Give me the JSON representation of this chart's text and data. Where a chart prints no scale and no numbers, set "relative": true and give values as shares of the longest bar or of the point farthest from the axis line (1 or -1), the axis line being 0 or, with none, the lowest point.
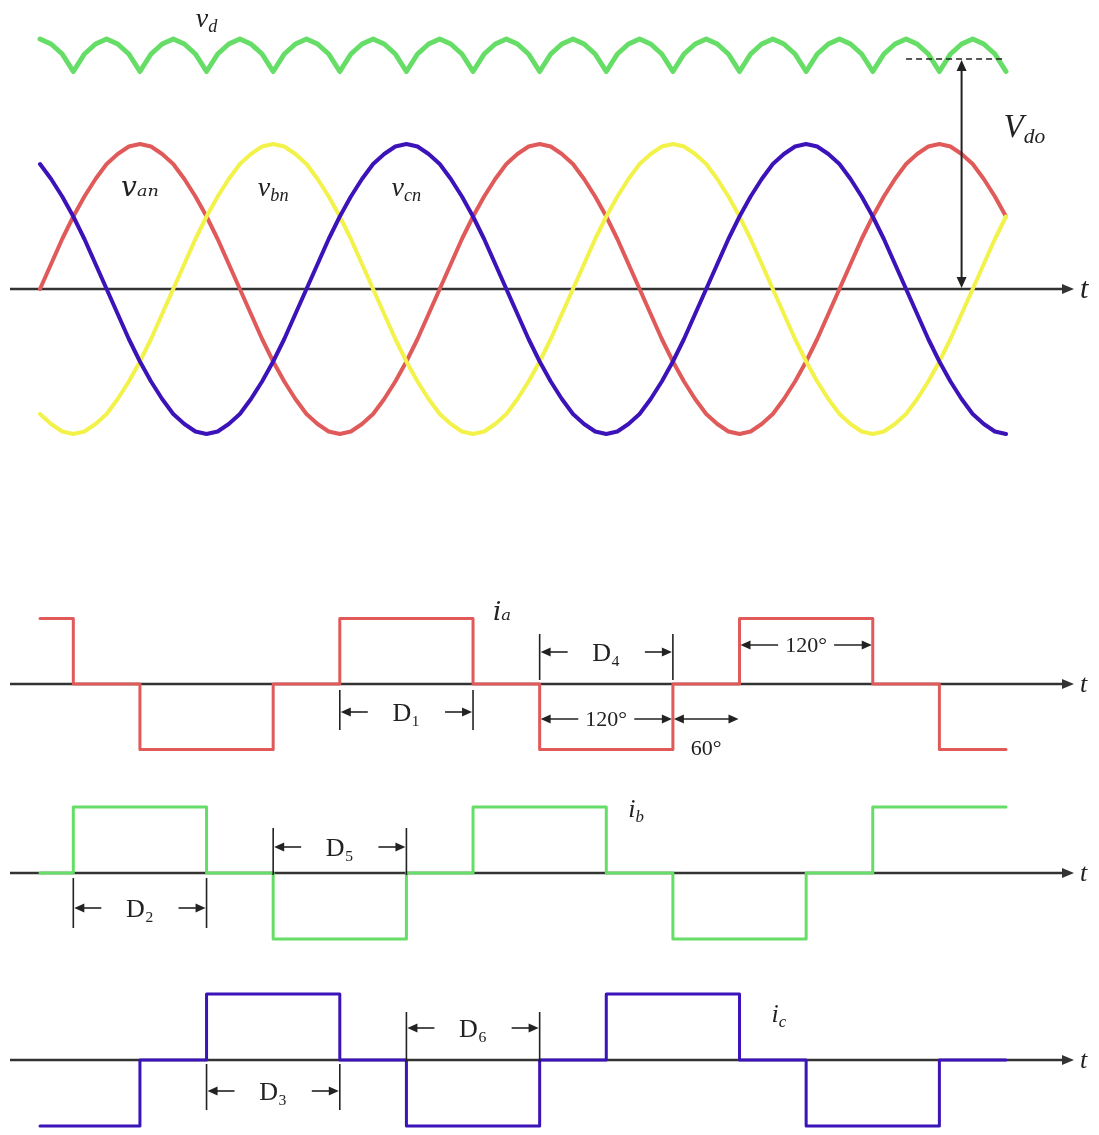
{
  "chart_data": [
    {
      "type": "line",
      "relative": true,
      "xlabel": "t",
      "categories": [
        null,
        null,
        null,
        null,
        null,
        null,
        null,
        null,
        null,
        null,
        null,
        null,
        null,
        null,
        null,
        null,
        null,
        null,
        null,
        null,
        null,
        null,
        null,
        null,
        null,
        null,
        null,
        null,
        null,
        null,
        null,
        null,
        null,
        null,
        null,
        null,
        null,
        null,
        null,
        null,
        null,
        null,
        null,
        null,
        null,
        null,
        null,
        null,
        null,
        null,
        null,
        null,
        null,
        null,
        null,
        null,
        null,
        null,
        null,
        null,
        null,
        null,
        null,
        null,
        null,
        null,
        null,
        null,
        null,
        null,
        null,
        null,
        null,
        null,
        null,
        null,
        null,
        null,
        null,
        null,
        null,
        null,
        null,
        null,
        null,
        null,
        null,
        null
      ],
      "series": [
        {
          "name": "v$_{d}$",
          "color": "#66dd66",
          "values": [
            1,
            0.98,
            0.94,
            0.87,
            0.94,
            0.98,
            1,
            0.98,
            0.94,
            0.87,
            0.94,
            0.98,
            1,
            0.98,
            0.94,
            0.87,
            0.94,
            0.98,
            1,
            0.98,
            0.94,
            0.87,
            0.94,
            0.98,
            1,
            0.98,
            0.94,
            0.87,
            0.94,
            0.98,
            1,
            0.98,
            0.94,
            0.87,
            0.94,
            0.98,
            1,
            0.98,
            0.94,
            0.87,
            0.94,
            0.98,
            1,
            0.98,
            0.94,
            0.87,
            0.94,
            0.98,
            1,
            0.98,
            0.94,
            0.87,
            0.94,
            0.98,
            1,
            0.98,
            0.94,
            0.87,
            0.94,
            0.98,
            1,
            0.98,
            0.94,
            0.87,
            0.94,
            0.98,
            1,
            0.98,
            0.94,
            0.87,
            0.94,
            0.98,
            1,
            0.98,
            0.94,
            0.87,
            0.94,
            0.98,
            1,
            0.98,
            0.94,
            0.87,
            0.94,
            0.98,
            1,
            0.98,
            0.94,
            0.87
          ]
        },
        {
          "name": "vₐₙ",
          "color": "#e05a5a",
          "values": [
            0,
            0.1,
            0.2,
            0.29,
            0.37,
            0.44,
            0.5,
            0.54,
            0.57,
            0.58,
            0.57,
            0.54,
            0.5,
            0.44,
            0.37,
            0.29,
            0.2,
            0.1,
            0,
            -0.1,
            -0.2,
            -0.29,
            -0.37,
            -0.44,
            -0.5,
            -0.54,
            -0.57,
            -0.58,
            -0.57,
            -0.54,
            -0.5,
            -0.44,
            -0.37,
            -0.29,
            -0.2,
            -0.1,
            0,
            0.1,
            0.2,
            0.29,
            0.37,
            0.44,
            0.5,
            0.54,
            0.57,
            0.58,
            0.57,
            0.54,
            0.5,
            0.44,
            0.37,
            0.29,
            0.2,
            0.1,
            0,
            -0.1,
            -0.2,
            -0.29,
            -0.37,
            -0.44,
            -0.5,
            -0.54,
            -0.57,
            -0.58,
            -0.57,
            -0.54,
            -0.5,
            -0.44,
            -0.37,
            -0.29,
            -0.2,
            -0.1,
            0,
            0.1,
            0.2,
            0.29,
            0.37,
            0.44,
            0.5,
            0.54,
            0.57,
            0.58,
            0.57,
            0.54,
            0.5,
            0.44,
            0.37,
            0.29
          ]
        },
        {
          "name": "v$_{bn}$",
          "color": "#f2f24a",
          "values": [
            -0.5,
            -0.54,
            -0.57,
            -0.58,
            -0.57,
            -0.54,
            -0.5,
            -0.44,
            -0.37,
            -0.29,
            -0.2,
            -0.1,
            0,
            0.1,
            0.2,
            0.29,
            0.37,
            0.44,
            0.5,
            0.54,
            0.57,
            0.58,
            0.57,
            0.54,
            0.5,
            0.44,
            0.37,
            0.29,
            0.2,
            0.1,
            0,
            -0.1,
            -0.2,
            -0.29,
            -0.37,
            -0.44,
            -0.5,
            -0.54,
            -0.57,
            -0.58,
            -0.57,
            -0.54,
            -0.5,
            -0.44,
            -0.37,
            -0.29,
            -0.2,
            -0.1,
            0,
            0.1,
            0.2,
            0.29,
            0.37,
            0.44,
            0.5,
            0.54,
            0.57,
            0.58,
            0.57,
            0.54,
            0.5,
            0.44,
            0.37,
            0.29,
            0.2,
            0.1,
            0,
            -0.1,
            -0.2,
            -0.29,
            -0.37,
            -0.44,
            -0.5,
            -0.54,
            -0.57,
            -0.58,
            -0.57,
            -0.54,
            -0.5,
            -0.44,
            -0.37,
            -0.29,
            -0.2,
            -0.1,
            0,
            0.1,
            0.2,
            0.29
          ]
        },
        {
          "name": "v$_{cn}$",
          "color": "#3b13b8",
          "values": [
            0.5,
            0.44,
            0.37,
            0.29,
            0.2,
            0.1,
            0,
            -0.1,
            -0.2,
            -0.29,
            -0.37,
            -0.44,
            -0.5,
            -0.54,
            -0.57,
            -0.58,
            -0.57,
            -0.54,
            -0.5,
            -0.44,
            -0.37,
            -0.29,
            -0.2,
            -0.1,
            0,
            0.1,
            0.2,
            0.29,
            0.37,
            0.44,
            0.5,
            0.54,
            0.57,
            0.58,
            0.57,
            0.54,
            0.5,
            0.44,
            0.37,
            0.29,
            0.2,
            0.1,
            0,
            -0.1,
            -0.2,
            -0.29,
            -0.37,
            -0.44,
            -0.5,
            -0.54,
            -0.57,
            -0.58,
            -0.57,
            -0.54,
            -0.5,
            -0.44,
            -0.37,
            -0.29,
            -0.2,
            -0.1,
            0,
            0.1,
            0.2,
            0.29,
            0.37,
            0.44,
            0.5,
            0.54,
            0.57,
            0.58,
            0.57,
            0.54,
            0.5,
            0.44,
            0.37,
            0.29,
            0.2,
            0.1,
            0,
            -0.1,
            -0.2,
            -0.29,
            -0.37,
            -0.44,
            -0.5,
            -0.54,
            -0.57,
            -0.58
          ]
        }
      ],
      "ref_lines": [
        {
          "axis": "y",
          "value": 0.92,
          "label": "V$_{do}$",
          "line_style": "dashed"
        }
      ]
    },
    {
      "type": "step",
      "relative": true,
      "xlabel": "t",
      "categories": [
        null,
        null,
        null,
        null,
        null,
        null,
        null,
        null,
        null,
        null,
        null,
        null,
        null,
        null,
        null,
        null,
        null,
        null,
        null,
        null,
        null,
        null,
        null,
        null,
        null,
        null,
        null,
        null,
        null,
        null
      ],
      "series": [
        {
          "name": "iₐ",
          "color": "#e05a5a",
          "values": [
            1,
            0,
            0,
            -1,
            -1,
            -1,
            -1,
            0,
            0,
            1,
            1,
            1,
            1,
            0,
            0,
            -1,
            -1,
            -1,
            -1,
            0,
            0,
            1,
            1,
            1,
            1,
            0,
            0,
            -1,
            -1,
            -1
          ]
        }
      ],
      "annotations": [
        "D₁",
        "D₄",
        "120°",
        "60°",
        "120°"
      ]
    },
    {
      "type": "step",
      "relative": true,
      "xlabel": "t",
      "categories": [
        null,
        null,
        null,
        null,
        null,
        null,
        null,
        null,
        null,
        null,
        null,
        null,
        null,
        null,
        null,
        null,
        null,
        null,
        null,
        null,
        null,
        null,
        null,
        null,
        null,
        null,
        null,
        null,
        null,
        null
      ],
      "series": [
        {
          "name": "i$_{b}$",
          "color": "#66dd66",
          "values": [
            0,
            1,
            1,
            1,
            1,
            0,
            0,
            -1,
            -1,
            -1,
            -1,
            0,
            0,
            1,
            1,
            1,
            1,
            0,
            0,
            -1,
            -1,
            -1,
            -1,
            0,
            0,
            1,
            1,
            1,
            1,
            1
          ]
        }
      ],
      "annotations": [
        "D₂",
        "D₅"
      ]
    },
    {
      "type": "step",
      "relative": true,
      "xlabel": "t",
      "categories": [
        null,
        null,
        null,
        null,
        null,
        null,
        null,
        null,
        null,
        null,
        null,
        null,
        null,
        null,
        null,
        null,
        null,
        null,
        null,
        null,
        null,
        null,
        null,
        null,
        null,
        null,
        null,
        null,
        null,
        null
      ],
      "series": [
        {
          "name": "i$_{c}$",
          "color": "#3b13b8",
          "values": [
            -1,
            -1,
            -1,
            0,
            0,
            1,
            1,
            1,
            1,
            0,
            0,
            -1,
            -1,
            -1,
            -1,
            0,
            0,
            1,
            1,
            1,
            1,
            0,
            0,
            -1,
            -1,
            -1,
            -1,
            0,
            0,
            0
          ]
        }
      ],
      "annotations": [
        "D₃",
        "D₆"
      ]
    }
  ]
}
